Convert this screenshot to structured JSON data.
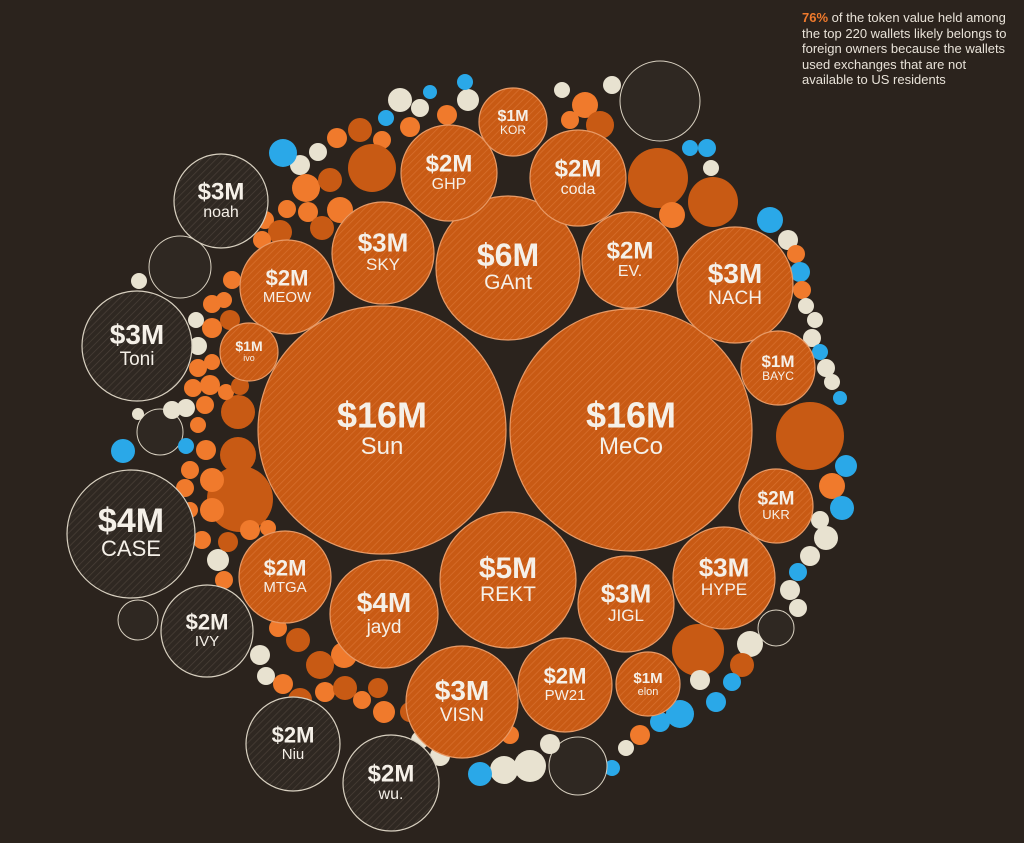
{
  "annotation": {
    "highlight": "76%",
    "text": " of the token value held among the top 220 wallets likely belongs to foreign owners because the wallets used exchanges that are not available to US residents"
  },
  "colors": {
    "background": "#2b231d",
    "foreign": "#c85a14",
    "foreign_light": "#f07a2c",
    "us": "#2f2822",
    "unknown": "#e8e2d0",
    "blue": "#2aa8e8"
  },
  "chart_data": {
    "type": "bubble",
    "title": "",
    "wallets": [
      {
        "name": "Sun",
        "value": "$16M",
        "group": "foreign"
      },
      {
        "name": "MeCo",
        "value": "$16M",
        "group": "foreign"
      },
      {
        "name": "GAnt",
        "value": "$6M",
        "group": "foreign"
      },
      {
        "name": "REKT",
        "value": "$5M",
        "group": "foreign"
      },
      {
        "name": "jayd",
        "value": "$4M",
        "group": "foreign"
      },
      {
        "name": "CASE",
        "value": "$4M",
        "group": "us"
      },
      {
        "name": "SKY",
        "value": "$3M",
        "group": "foreign"
      },
      {
        "name": "NACH",
        "value": "$3M",
        "group": "foreign"
      },
      {
        "name": "HYPE",
        "value": "$3M",
        "group": "foreign"
      },
      {
        "name": "JIGL",
        "value": "$3M",
        "group": "foreign"
      },
      {
        "name": "VISN",
        "value": "$3M",
        "group": "foreign"
      },
      {
        "name": "noah",
        "value": "$3M",
        "group": "us"
      },
      {
        "name": "Toni",
        "value": "$3M",
        "group": "us"
      },
      {
        "name": "GHP",
        "value": "$2M",
        "group": "foreign"
      },
      {
        "name": "coda",
        "value": "$2M",
        "group": "foreign"
      },
      {
        "name": "EV.",
        "value": "$2M",
        "group": "foreign"
      },
      {
        "name": "MEOW",
        "value": "$2M",
        "group": "foreign"
      },
      {
        "name": "MTGA",
        "value": "$2M",
        "group": "foreign"
      },
      {
        "name": "PW21",
        "value": "$2M",
        "group": "foreign"
      },
      {
        "name": "UKR",
        "value": "$2M",
        "group": "foreign"
      },
      {
        "name": "IVY",
        "value": "$2M",
        "group": "us"
      },
      {
        "name": "Niu",
        "value": "$2M",
        "group": "us"
      },
      {
        "name": "wu.",
        "value": "$2M",
        "group": "us"
      },
      {
        "name": "KOR",
        "value": "$1M",
        "group": "foreign"
      },
      {
        "name": "BAYC",
        "value": "$1M",
        "group": "foreign"
      },
      {
        "name": "elon",
        "value": "$1M",
        "group": "foreign"
      },
      {
        "name": "ivo",
        "value": "$1M",
        "group": "foreign"
      }
    ],
    "foreign_share_percent": 76,
    "total_wallets": 220
  }
}
